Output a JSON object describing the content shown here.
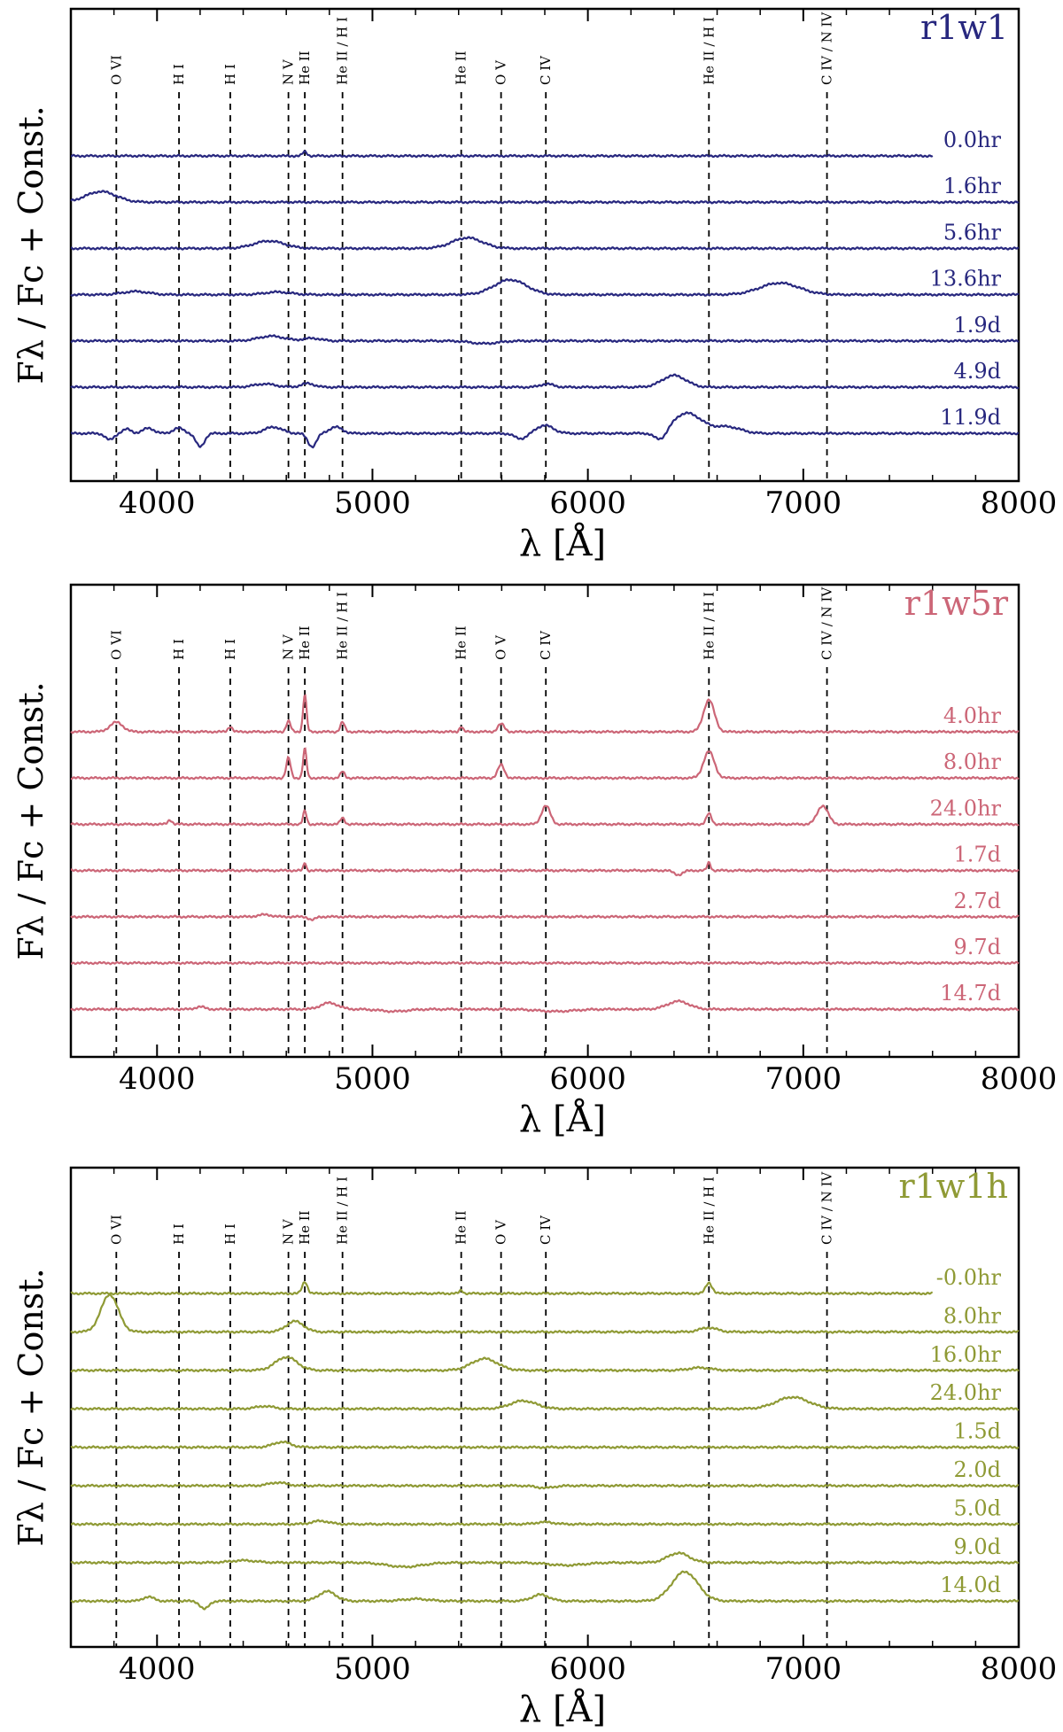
{
  "chart_data": [
    {
      "type": "line",
      "title": "r1w1",
      "color": "#28287f",
      "xlabel": "λ [Å]",
      "ylabel": "Fλ / Fc + Const.",
      "xlim": [
        3600,
        8000
      ],
      "xticks": [
        4000,
        5000,
        6000,
        7000,
        8000
      ],
      "lines": [
        {
          "label": "O VI",
          "x": 3811
        },
        {
          "label": "H I",
          "x": 4102
        },
        {
          "label": "H I",
          "x": 4340
        },
        {
          "label": "N V",
          "x": 4610
        },
        {
          "label": "He II",
          "x": 4686
        },
        {
          "label": "He II / H I",
          "x": 4861
        },
        {
          "label": "He II",
          "x": 5412
        },
        {
          "label": "O V",
          "x": 5597
        },
        {
          "label": "C IV",
          "x": 5805
        },
        {
          "label": "He II / H I",
          "x": 6562
        },
        {
          "label": "C IV / N IV",
          "x": 7110
        }
      ],
      "series": [
        {
          "name": "0.0hr",
          "x_end": 7600,
          "features": [
            {
              "x": 4686,
              "amp": 0.08,
              "w": 10
            }
          ]
        },
        {
          "name": "1.6hr",
          "x_end": 8000,
          "features": [
            {
              "x": 3740,
              "amp": 0.2,
              "w": 70
            }
          ]
        },
        {
          "name": "5.6hr",
          "x_end": 8000,
          "features": [
            {
              "x": 4520,
              "amp": 0.14,
              "w": 70
            },
            {
              "x": 5440,
              "amp": 0.2,
              "w": 70
            }
          ]
        },
        {
          "name": "13.6hr",
          "x_end": 8000,
          "features": [
            {
              "x": 3900,
              "amp": 0.06,
              "w": 60
            },
            {
              "x": 4560,
              "amp": 0.05,
              "w": 60
            },
            {
              "x": 5640,
              "amp": 0.28,
              "w": 75
            },
            {
              "x": 6890,
              "amp": 0.22,
              "w": 90
            }
          ]
        },
        {
          "name": "1.9d",
          "x_end": 8000,
          "features": [
            {
              "x": 4530,
              "amp": 0.09,
              "w": 60
            },
            {
              "x": 4720,
              "amp": 0.05,
              "w": 40
            },
            {
              "x": 5520,
              "amp": -0.05,
              "w": 60
            }
          ]
        },
        {
          "name": "4.9d",
          "x_end": 8000,
          "features": [
            {
              "x": 4500,
              "amp": 0.06,
              "w": 50
            },
            {
              "x": 4700,
              "amp": 0.07,
              "w": 30
            },
            {
              "x": 5810,
              "amp": 0.06,
              "w": 30
            },
            {
              "x": 6400,
              "amp": 0.22,
              "w": 55
            }
          ]
        },
        {
          "name": "11.9d",
          "x_end": 8000,
          "features": [
            {
              "x": 3780,
              "amp": -0.12,
              "w": 20
            },
            {
              "x": 3860,
              "amp": 0.08,
              "w": 20
            },
            {
              "x": 3960,
              "amp": 0.1,
              "w": 25
            },
            {
              "x": 4100,
              "amp": 0.1,
              "w": 25
            },
            {
              "x": 4200,
              "amp": -0.25,
              "w": 20
            },
            {
              "x": 4540,
              "amp": 0.12,
              "w": 40
            },
            {
              "x": 4720,
              "amp": -0.25,
              "w": 20
            },
            {
              "x": 4830,
              "amp": 0.12,
              "w": 30
            },
            {
              "x": 5690,
              "amp": -0.1,
              "w": 30
            },
            {
              "x": 5800,
              "amp": 0.15,
              "w": 40
            },
            {
              "x": 6340,
              "amp": -0.18,
              "w": 30
            },
            {
              "x": 6460,
              "amp": 0.38,
              "w": 70
            },
            {
              "x": 6650,
              "amp": 0.12,
              "w": 60
            }
          ]
        }
      ]
    },
    {
      "type": "line",
      "title": "r1w5r",
      "color": "#cc6677",
      "xlabel": "λ [Å]",
      "ylabel": "Fλ / Fc + Const.",
      "xlim": [
        3600,
        8000
      ],
      "xticks": [
        4000,
        5000,
        6000,
        7000,
        8000
      ],
      "lines": [
        {
          "label": "O VI",
          "x": 3811
        },
        {
          "label": "H I",
          "x": 4102
        },
        {
          "label": "H I",
          "x": 4340
        },
        {
          "label": "N V",
          "x": 4610
        },
        {
          "label": "He II",
          "x": 4686
        },
        {
          "label": "He II / H I",
          "x": 4861
        },
        {
          "label": "He II",
          "x": 5412
        },
        {
          "label": "O V",
          "x": 5597
        },
        {
          "label": "C IV",
          "x": 5805
        },
        {
          "label": "He II / H I",
          "x": 6562
        },
        {
          "label": "C IV / N IV",
          "x": 7110
        }
      ],
      "series": [
        {
          "name": "4.0hr",
          "x_end": 8000,
          "features": [
            {
              "x": 3811,
              "amp": 0.18,
              "w": 30
            },
            {
              "x": 4340,
              "amp": 0.1,
              "w": 10
            },
            {
              "x": 4610,
              "amp": 0.2,
              "w": 10
            },
            {
              "x": 4686,
              "amp": 0.7,
              "w": 8
            },
            {
              "x": 4861,
              "amp": 0.18,
              "w": 10
            },
            {
              "x": 5412,
              "amp": 0.1,
              "w": 8
            },
            {
              "x": 5597,
              "amp": 0.15,
              "w": 15
            },
            {
              "x": 6562,
              "amp": 0.6,
              "w": 25
            }
          ]
        },
        {
          "name": "8.0hr",
          "x_end": 8000,
          "features": [
            {
              "x": 4610,
              "amp": 0.38,
              "w": 10
            },
            {
              "x": 4686,
              "amp": 0.55,
              "w": 8
            },
            {
              "x": 4861,
              "amp": 0.12,
              "w": 10
            },
            {
              "x": 5597,
              "amp": 0.25,
              "w": 15
            },
            {
              "x": 6562,
              "amp": 0.5,
              "w": 25
            }
          ]
        },
        {
          "name": "24.0hr",
          "x_end": 8000,
          "features": [
            {
              "x": 4060,
              "amp": 0.08,
              "w": 10
            },
            {
              "x": 4686,
              "amp": 0.25,
              "w": 8
            },
            {
              "x": 4861,
              "amp": 0.12,
              "w": 10
            },
            {
              "x": 5805,
              "amp": 0.35,
              "w": 20
            },
            {
              "x": 6562,
              "amp": 0.2,
              "w": 12
            },
            {
              "x": 7090,
              "amp": 0.35,
              "w": 25
            }
          ]
        },
        {
          "name": "1.7d",
          "x_end": 8000,
          "features": [
            {
              "x": 4686,
              "amp": 0.15,
              "w": 6
            },
            {
              "x": 6420,
              "amp": -0.08,
              "w": 20
            },
            {
              "x": 6562,
              "amp": 0.15,
              "w": 8
            }
          ]
        },
        {
          "name": "2.7d",
          "x_end": 8000,
          "features": [
            {
              "x": 4500,
              "amp": 0.04,
              "w": 30
            },
            {
              "x": 4720,
              "amp": -0.06,
              "w": 15
            }
          ]
        },
        {
          "name": "9.7d",
          "x_end": 8000,
          "features": []
        },
        {
          "name": "14.7d",
          "x_end": 8000,
          "features": [
            {
              "x": 4200,
              "amp": 0.05,
              "w": 20
            },
            {
              "x": 4800,
              "amp": 0.12,
              "w": 40
            },
            {
              "x": 5100,
              "amp": -0.04,
              "w": 60
            },
            {
              "x": 5850,
              "amp": -0.04,
              "w": 80
            },
            {
              "x": 6420,
              "amp": 0.15,
              "w": 50
            }
          ]
        }
      ]
    },
    {
      "type": "line",
      "title": "r1w1h",
      "color": "#8f9a35",
      "xlabel": "λ [Å]",
      "ylabel": "Fλ / Fc + Const.",
      "xlim": [
        3600,
        8000
      ],
      "xticks": [
        4000,
        5000,
        6000,
        7000,
        8000
      ],
      "lines": [
        {
          "label": "O VI",
          "x": 3811
        },
        {
          "label": "H I",
          "x": 4102
        },
        {
          "label": "H I",
          "x": 4340
        },
        {
          "label": "N V",
          "x": 4610
        },
        {
          "label": "He II",
          "x": 4686
        },
        {
          "label": "He II / H I",
          "x": 4861
        },
        {
          "label": "He II",
          "x": 5412
        },
        {
          "label": "O V",
          "x": 5597
        },
        {
          "label": "C IV",
          "x": 5805
        },
        {
          "label": "He II / H I",
          "x": 6562
        },
        {
          "label": "C IV / N IV",
          "x": 7110
        }
      ],
      "series": [
        {
          "name": "-0.0hr",
          "x_end": 7600,
          "features": [
            {
              "x": 4686,
              "amp": 0.22,
              "w": 12
            },
            {
              "x": 5412,
              "amp": 0.06,
              "w": 8
            },
            {
              "x": 6562,
              "amp": 0.2,
              "w": 15
            }
          ]
        },
        {
          "name": "8.0hr",
          "x_end": 8000,
          "features": [
            {
              "x": 3780,
              "amp": 0.7,
              "w": 40
            },
            {
              "x": 4640,
              "amp": 0.2,
              "w": 40
            },
            {
              "x": 6560,
              "amp": 0.08,
              "w": 40
            }
          ]
        },
        {
          "name": "16.0hr",
          "x_end": 8000,
          "features": [
            {
              "x": 4600,
              "amp": 0.25,
              "w": 50
            },
            {
              "x": 5520,
              "amp": 0.22,
              "w": 60
            },
            {
              "x": 6520,
              "amp": 0.05,
              "w": 50
            }
          ]
        },
        {
          "name": "24.0hr",
          "x_end": 8000,
          "features": [
            {
              "x": 4500,
              "amp": 0.05,
              "w": 40
            },
            {
              "x": 5700,
              "amp": 0.15,
              "w": 60
            },
            {
              "x": 6950,
              "amp": 0.22,
              "w": 75
            }
          ]
        },
        {
          "name": "1.5d",
          "x_end": 8000,
          "features": [
            {
              "x": 4580,
              "amp": 0.1,
              "w": 40
            }
          ]
        },
        {
          "name": "2.0d",
          "x_end": 8000,
          "features": [
            {
              "x": 4560,
              "amp": 0.06,
              "w": 40
            },
            {
              "x": 5800,
              "amp": -0.04,
              "w": 40
            }
          ]
        },
        {
          "name": "5.0d",
          "x_end": 8000,
          "features": [
            {
              "x": 4760,
              "amp": 0.06,
              "w": 40
            },
            {
              "x": 5800,
              "amp": 0.04,
              "w": 40
            }
          ]
        },
        {
          "name": "9.0d",
          "x_end": 8000,
          "features": [
            {
              "x": 4400,
              "amp": 0.04,
              "w": 60
            },
            {
              "x": 5150,
              "amp": -0.08,
              "w": 80
            },
            {
              "x": 5900,
              "amp": -0.05,
              "w": 80
            },
            {
              "x": 6420,
              "amp": 0.18,
              "w": 50
            }
          ]
        },
        {
          "name": "14.0d",
          "x_end": 8000,
          "features": [
            {
              "x": 3960,
              "amp": 0.08,
              "w": 25
            },
            {
              "x": 4220,
              "amp": -0.15,
              "w": 20
            },
            {
              "x": 4790,
              "amp": 0.18,
              "w": 40
            },
            {
              "x": 5200,
              "amp": 0.04,
              "w": 60
            },
            {
              "x": 5780,
              "amp": 0.12,
              "w": 40
            },
            {
              "x": 6450,
              "amp": 0.55,
              "w": 60
            }
          ]
        }
      ]
    }
  ]
}
